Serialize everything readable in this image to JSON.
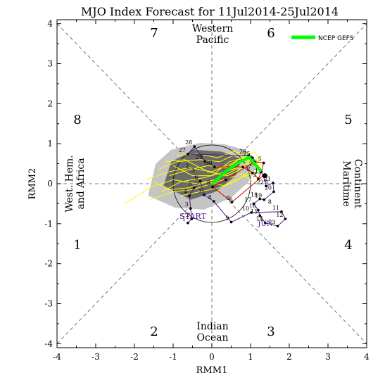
{
  "chart_data": {
    "type": "scatter",
    "title": "MJO Index Forecast for 11Jul2014-25Jul2014",
    "xlabel": "RMM1",
    "ylabel": "RMM2",
    "xlim": [
      -4,
      4
    ],
    "ylim": [
      -4.1,
      4.1
    ],
    "xticks": [
      "-4",
      "-3",
      "-2",
      "-1",
      "0",
      "1",
      "2",
      "3",
      "4"
    ],
    "yticks": [
      "-4",
      "-3",
      "-2",
      "-1",
      "0",
      "1",
      "2",
      "3",
      "4"
    ],
    "phases": [
      "1",
      "2",
      "3",
      "4",
      "5",
      "6",
      "7",
      "8"
    ],
    "regions": {
      "top_line1": "Western",
      "top_line2": "Pacific",
      "bottom_line1": "Indian",
      "bottom_line2": "Ocean",
      "left_line1": "West. Hem.",
      "left_line2": "and Africa",
      "right_line1": "Maritime",
      "right_line2": "Continent"
    },
    "legend": {
      "label": "NCEP GEFS",
      "color": "#00ff00",
      "position": "top-right"
    },
    "month_labels": {
      "start": "START",
      "jun": "JUN",
      "jul": "JUL"
    },
    "colors": {
      "observed": "#551a8b",
      "recent": "#cc0000",
      "ensemble": "#ffff00",
      "mean": "#00ff00",
      "dark_shade": "#6b6b6b",
      "light_shade": "#c4c4c4"
    },
    "observed": [
      {
        "day": "1",
        "x": -0.62,
        "y": -0.98
      },
      {
        "day": "2",
        "x": -0.52,
        "y": -0.88
      },
      {
        "day": "3",
        "x": -0.55,
        "y": -0.62
      },
      {
        "day": "4",
        "x": -0.58,
        "y": -0.3
      },
      {
        "day": "5",
        "x": -0.46,
        "y": -0.1
      },
      {
        "day": "6",
        "x": -0.3,
        "y": 0.06
      },
      {
        "day": "7",
        "x": -0.2,
        "y": -0.28
      },
      {
        "day": "8",
        "x": 0.05,
        "y": -0.44
      },
      {
        "day": "9",
        "x": 0.5,
        "y": -0.96
      },
      {
        "day": "10",
        "x": 1.02,
        "y": -0.72
      },
      {
        "day": "11",
        "x": 1.8,
        "y": -0.7
      },
      {
        "day": "12",
        "x": 1.9,
        "y": -0.88
      },
      {
        "day": "13",
        "x": 1.7,
        "y": -1.06
      },
      {
        "day": "14",
        "x": 1.38,
        "y": -0.98
      },
      {
        "day": "15",
        "x": 1.24,
        "y": -0.8
      },
      {
        "day": "16",
        "x": 1.2,
        "y": -0.66
      },
      {
        "day": "17",
        "x": 1.08,
        "y": -0.5
      },
      {
        "day": "18",
        "x": 1.24,
        "y": -0.38
      },
      {
        "day": "19",
        "x": 1.35,
        "y": -0.4
      },
      {
        "day": "20",
        "x": 1.6,
        "y": -0.2
      },
      {
        "day": "21",
        "x": 1.58,
        "y": 0.02
      },
      {
        "day": "22",
        "x": 1.4,
        "y": -0.06
      },
      {
        "day": "23",
        "x": 1.33,
        "y": 0.2
      },
      {
        "day": "24",
        "x": 1.2,
        "y": 0.4
      },
      {
        "day": "25",
        "x": 1.05,
        "y": 0.65
      },
      {
        "day": "26",
        "x": 0.95,
        "y": 0.7
      },
      {
        "day": "27",
        "x": -0.62,
        "y": 0.74
      },
      {
        "day": "28",
        "x": -0.45,
        "y": 0.93
      },
      {
        "day": "29",
        "x": -0.18,
        "y": 0.56
      },
      {
        "day": "30",
        "x": 0.07,
        "y": 0.42
      },
      {
        "day": "1",
        "x": 0.8,
        "y": 0.42
      },
      {
        "day": "2",
        "x": 1.05,
        "y": 0.27
      },
      {
        "day": "3",
        "x": 1.2,
        "y": 0.12
      },
      {
        "day": "4",
        "x": 1.28,
        "y": 0.3
      },
      {
        "day": "5",
        "x": 1.34,
        "y": 0.52
      },
      {
        "day": "6",
        "x": 1.1,
        "y": 0.55
      },
      {
        "day": "7",
        "x": 0.36,
        "y": 0.1
      },
      {
        "day": "8",
        "x": 0.02,
        "y": -0.08
      },
      {
        "day": "9",
        "x": 0.52,
        "y": -0.46
      },
      {
        "day": "10",
        "x": 1.35,
        "y": 0.22
      }
    ],
    "recent_labels": [
      {
        "day": "2",
        "x": -0.68,
        "y": 0.4
      },
      {
        "day": "3",
        "x": -0.53,
        "y": 0.28
      },
      {
        "day": "9",
        "x": 1.36,
        "y": 0.0
      },
      {
        "day": "6",
        "x": 0.45,
        "y": -0.45
      },
      {
        "day": "8",
        "x": 1.45,
        "y": -0.5
      }
    ],
    "forecast_mean": [
      {
        "x": 0.02,
        "y": 0.0
      },
      {
        "x": 0.35,
        "y": 0.3
      },
      {
        "x": 0.68,
        "y": 0.52
      },
      {
        "x": 0.96,
        "y": 0.66
      },
      {
        "x": 1.12,
        "y": 0.48
      },
      {
        "x": 1.27,
        "y": 0.3
      }
    ],
    "forecast_start": {
      "x": 1.37,
      "y": 0.2
    }
  }
}
